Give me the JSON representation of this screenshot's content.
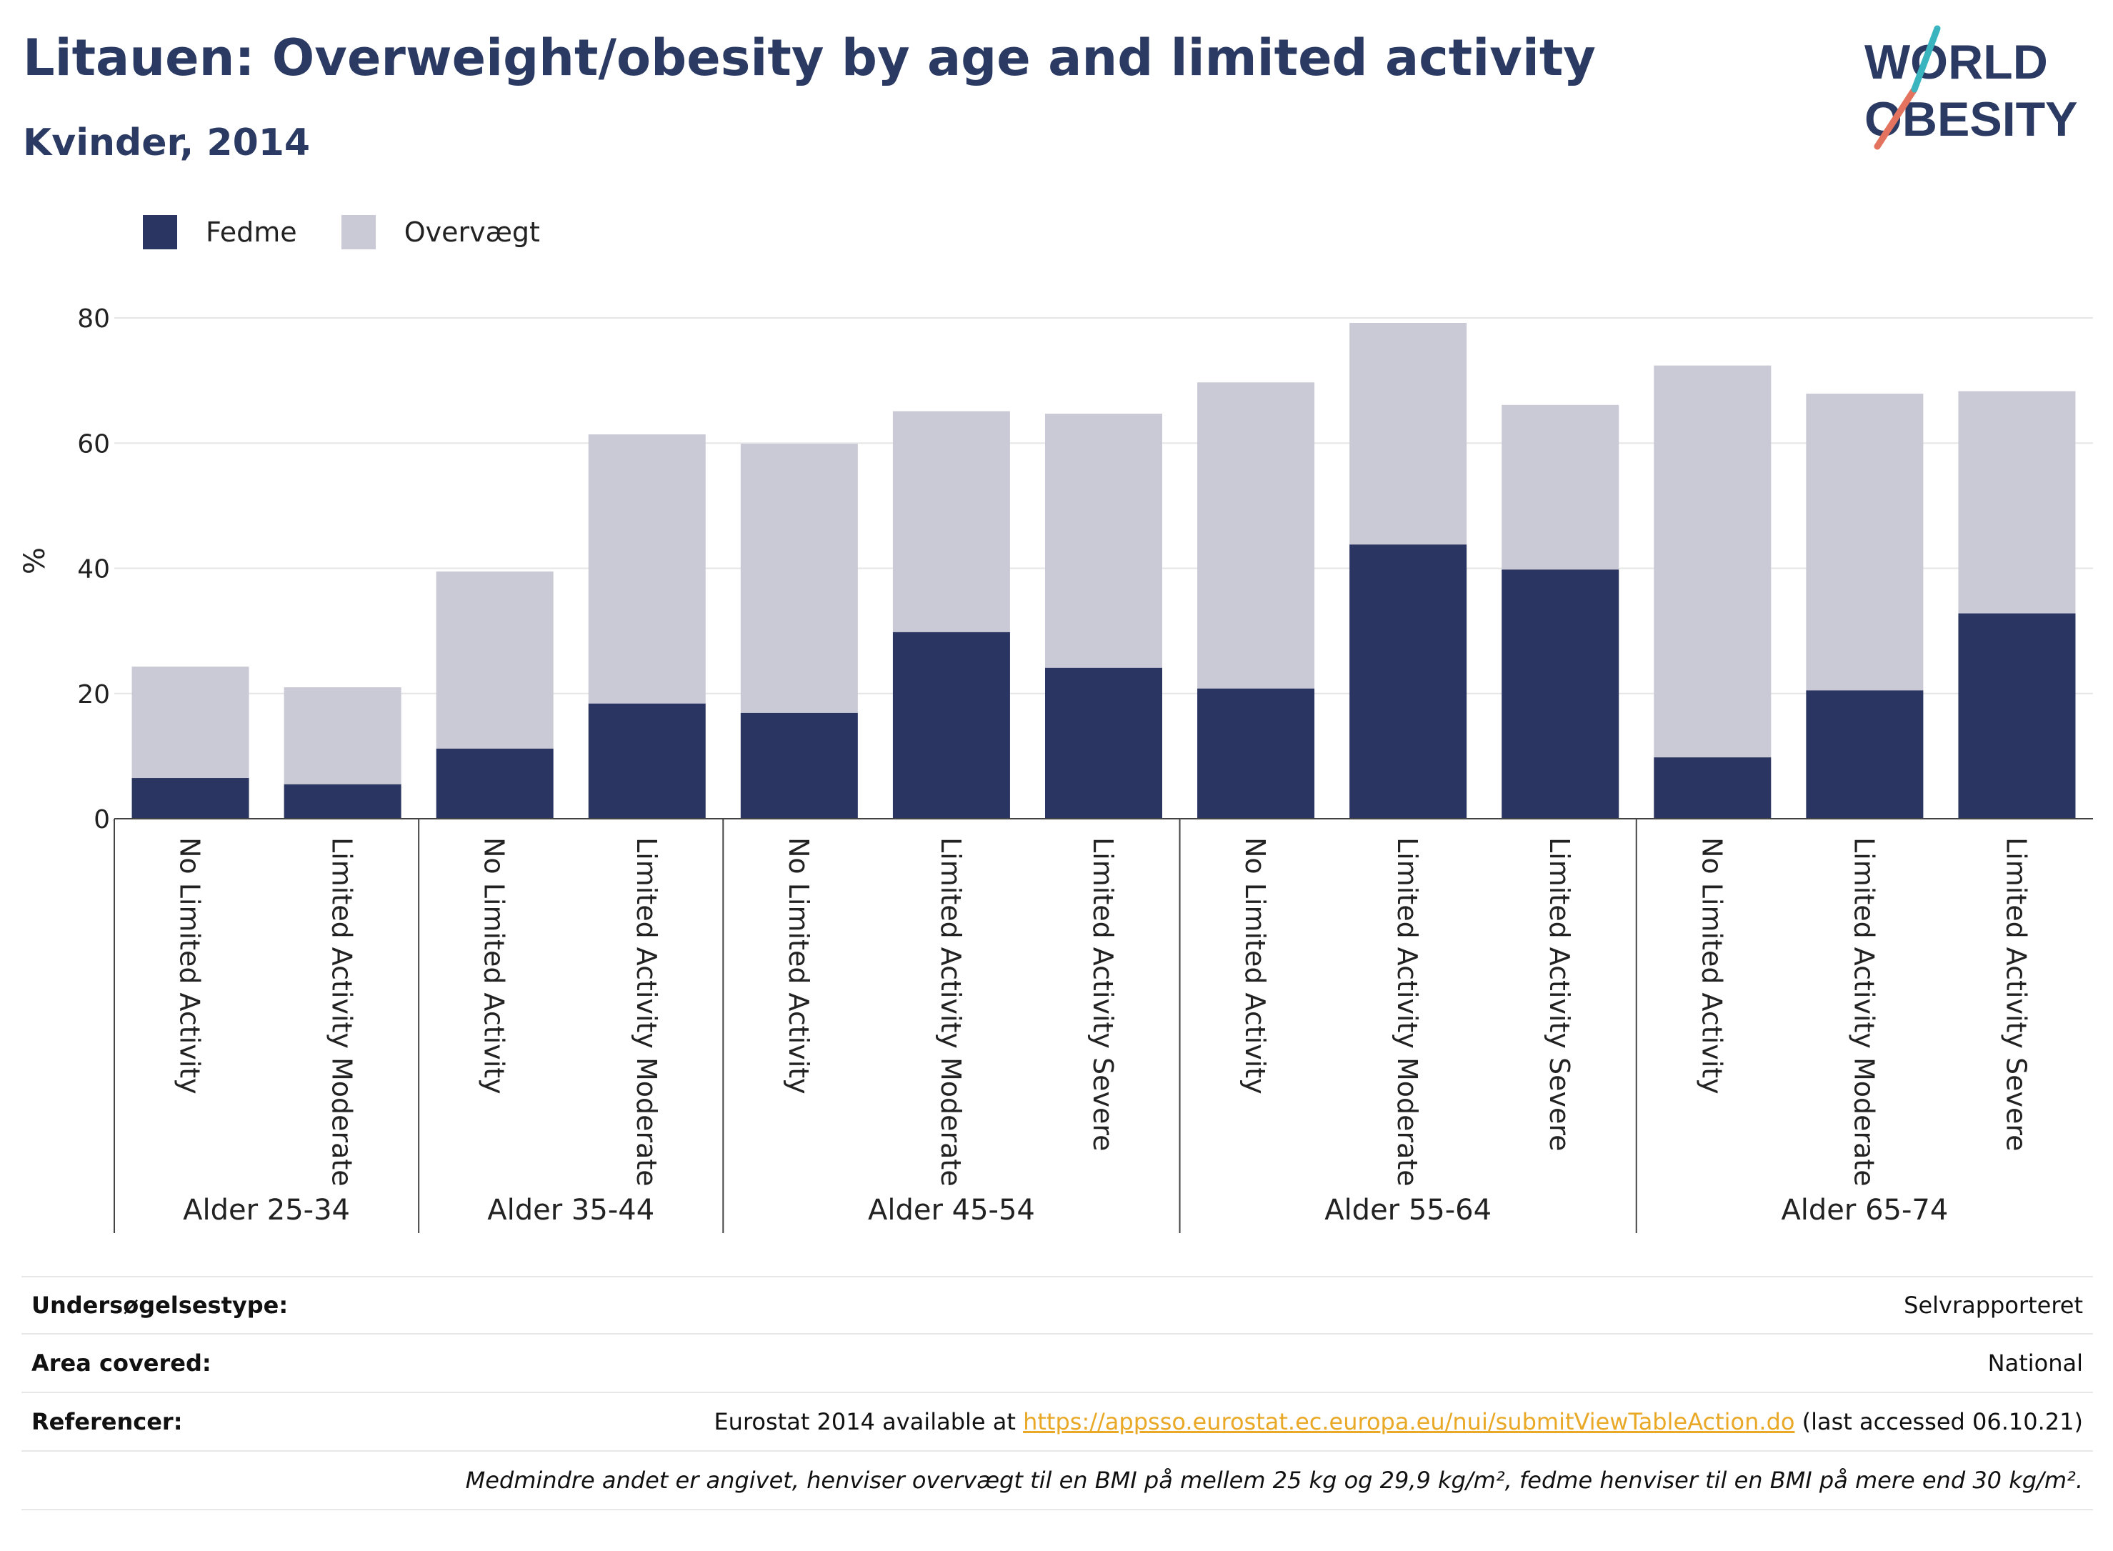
{
  "header": {
    "title": "Litauen: Overweight/obesity by age and limited activity",
    "subtitle": "Kvinder, 2014"
  },
  "logo": {
    "line1": "WORLD",
    "line2": "OBESITY"
  },
  "colors": {
    "fedme": "#2b3562",
    "overvaegt": "#c9cad6",
    "title": "#2b3a63",
    "slash_red": "#e3735e",
    "slash_teal": "#3ab5c0"
  },
  "chart_data": {
    "type": "bar",
    "stacked": true,
    "ylabel": "%",
    "ylim": [
      0,
      80
    ],
    "yticks": [
      0,
      20,
      40,
      60,
      80
    ],
    "grid": true,
    "legend_position": "top-left",
    "groups": [
      {
        "label": "Alder 25-34",
        "categories": [
          "No Limited Activity",
          "Limited Activity Moderate"
        ]
      },
      {
        "label": "Alder 35-44",
        "categories": [
          "No Limited Activity",
          "Limited Activity Moderate"
        ]
      },
      {
        "label": "Alder 45-54",
        "categories": [
          "No Limited Activity",
          "Limited Activity Moderate",
          "Limited Activity Severe"
        ]
      },
      {
        "label": "Alder 55-64",
        "categories": [
          "No Limited Activity",
          "Limited Activity Moderate",
          "Limited Activity Severe"
        ]
      },
      {
        "label": "Alder 65-74",
        "categories": [
          "No Limited Activity",
          "Limited Activity Moderate",
          "Limited Activity Severe"
        ]
      }
    ],
    "series": [
      {
        "name": "Fedme",
        "values": [
          6.5,
          5.5,
          11.2,
          18.4,
          16.9,
          29.8,
          24.1,
          20.8,
          43.8,
          39.8,
          9.8,
          20.5,
          32.8
        ]
      },
      {
        "name": "Overvægt",
        "values": [
          17.8,
          15.5,
          28.3,
          43.0,
          43.0,
          35.3,
          40.6,
          48.9,
          35.4,
          26.3,
          62.6,
          47.4,
          35.5
        ]
      }
    ]
  },
  "info": {
    "survey_label": "Undersøgelsestype:",
    "survey_value": "Selvrapporteret",
    "area_label": "Area covered:",
    "area_value": "National",
    "ref_label": "Referencer:",
    "ref_prefix": "Eurostat 2014 available at ",
    "ref_link": "https://appsso.eurostat.ec.europa.eu/nui/submitViewTableAction.do",
    "ref_suffix": " (last accessed 06.10.21)",
    "note": "Medmindre andet er angivet, henviser overvægt til en BMI på mellem 25 kg og 29,9 kg/m², fedme henviser til en BMI på mere end 30 kg/m²."
  }
}
